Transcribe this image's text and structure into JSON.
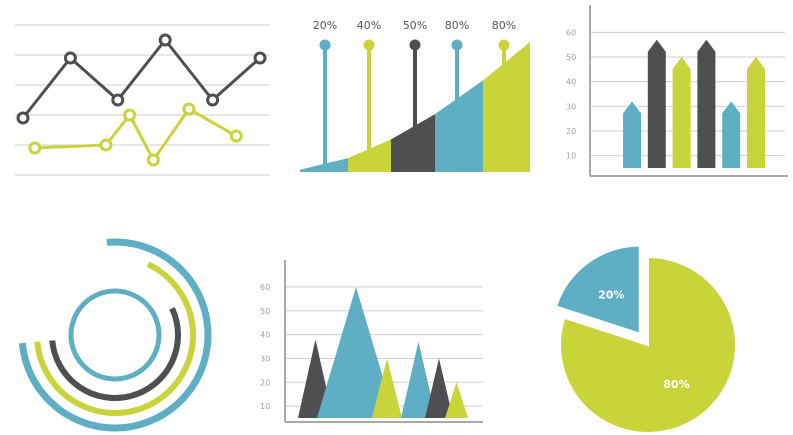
{
  "colors": {
    "blue": "#5eaec4",
    "lime": "#c9d43b",
    "dark": "#4d4f51",
    "grid": "#cfcfcf",
    "axis": "#a9a9a9"
  },
  "chart_data": [
    {
      "id": "line",
      "type": "line",
      "grid": true,
      "x": [
        1,
        2,
        3,
        4,
        5,
        6,
        7,
        8,
        9,
        10,
        11,
        12,
        13,
        14,
        15,
        16,
        17,
        18,
        19,
        20,
        21
      ],
      "series": [
        {
          "color": "dark",
          "points": [
            [
              1,
              1.9
            ],
            [
              5,
              3.9
            ],
            [
              9,
              2.5
            ],
            [
              13,
              4.5
            ],
            [
              17,
              2.5
            ],
            [
              21,
              3.9
            ]
          ]
        },
        {
          "color": "lime",
          "points": [
            [
              2,
              0.9
            ],
            [
              8,
              1.0
            ],
            [
              10,
              2.0
            ],
            [
              12,
              0.5
            ],
            [
              15,
              2.2
            ],
            [
              19,
              1.3
            ]
          ]
        }
      ],
      "ylim": [
        0,
        5
      ]
    },
    {
      "id": "lollipop-area",
      "type": "area",
      "labels": [
        "20%",
        "40%",
        "50%",
        "80%",
        "80%"
      ],
      "colors": [
        "blue",
        "lime",
        "dark",
        "blue",
        "lime"
      ],
      "values": [
        20,
        40,
        50,
        80,
        80
      ]
    },
    {
      "id": "arrow-bars",
      "type": "bar",
      "grid": true,
      "yticks": [
        "60",
        "50",
        "40",
        "30",
        "20",
        "10"
      ],
      "ylim": [
        5,
        65
      ],
      "bars": [
        {
          "value": 32,
          "color": "blue"
        },
        {
          "value": 57,
          "color": "dark"
        },
        {
          "value": 50,
          "color": "lime"
        },
        {
          "value": 57,
          "color": "dark"
        },
        {
          "value": 32,
          "color": "blue"
        },
        {
          "value": 50,
          "color": "lime"
        }
      ]
    },
    {
      "id": "radial",
      "type": "pie",
      "rings": [
        {
          "color": "blue",
          "sweep": 270
        },
        {
          "color": "lime",
          "sweep": 240
        },
        {
          "color": "dark",
          "sweep": 200
        },
        {
          "color": "blue",
          "sweep": 360
        }
      ]
    },
    {
      "id": "peaks",
      "type": "area",
      "grid": true,
      "yticks": [
        "60",
        "50",
        "40",
        "30",
        "20",
        "10"
      ],
      "ylim": [
        5,
        65
      ],
      "peaks": [
        {
          "value": 38,
          "color": "dark"
        },
        {
          "value": 60,
          "color": "blue"
        },
        {
          "value": 30,
          "color": "lime"
        },
        {
          "value": 37,
          "color": "blue"
        },
        {
          "value": 30,
          "color": "dark"
        },
        {
          "value": 20,
          "color": "lime"
        }
      ]
    },
    {
      "id": "pie",
      "type": "pie",
      "slices": [
        {
          "label": "20%",
          "value": 20,
          "color": "blue",
          "exploded": true
        },
        {
          "label": "80%",
          "value": 80,
          "color": "lime",
          "exploded": false
        }
      ]
    }
  ]
}
